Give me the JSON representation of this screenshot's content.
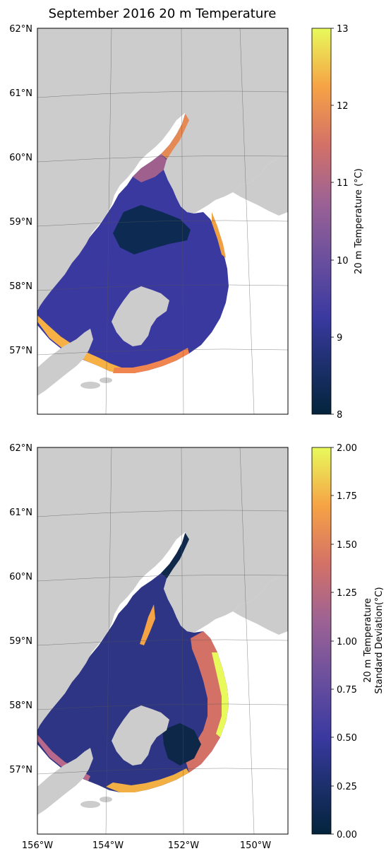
{
  "title": "September 2016 20 m Temperature",
  "lat_ticks": [
    "62°N",
    "61°N",
    "60°N",
    "59°N",
    "58°N",
    "57°N"
  ],
  "lon_ticks": [
    "156°W",
    "154°W",
    "152°W",
    "150°W"
  ],
  "panels": [
    {
      "name": "mean-temperature",
      "variable": "20 m Temperature",
      "colorbar": {
        "label_lines": [
          "20 m Temperature (°C)"
        ],
        "range": [
          8,
          13
        ],
        "ticks": [
          "8",
          "9",
          "10",
          "11",
          "12",
          "13"
        ]
      }
    },
    {
      "name": "temperature-standard-deviation",
      "variable": "20 m Temperature Standard Deviation",
      "colorbar": {
        "label_lines": [
          "20 m Temperature",
          "Standard Deviation(°C)"
        ],
        "range": [
          0,
          2
        ],
        "ticks": [
          "0.00",
          "0.25",
          "0.50",
          "0.75",
          "1.00",
          "1.25",
          "1.50",
          "1.75",
          "2.00"
        ]
      }
    }
  ],
  "colormap": "thermal",
  "colors": {
    "land": "#cccccc",
    "gridline": "#555555",
    "cmap_low": "#03243c",
    "cmap_mid": "#8f5d9f",
    "cmap_high": "#e8fa5b"
  }
}
